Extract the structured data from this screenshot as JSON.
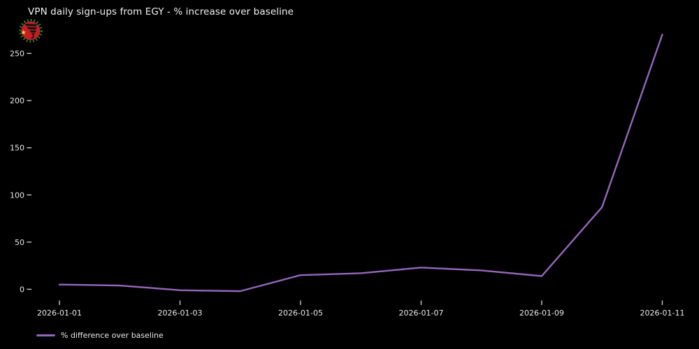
{
  "logo": {
    "ring_color": "#1f8c3a",
    "disc_color": "#c41e25",
    "tornado_color": "#141414",
    "star_color": "#ffcf3f",
    "star_glyph": "★"
  },
  "chart_data": {
    "type": "line",
    "title": "VPN daily sign-ups from EGY - % increase over baseline",
    "xlabel": "",
    "ylabel": "",
    "x": [
      "2026-01-01",
      "2026-01-02",
      "2026-01-03",
      "2026-01-04",
      "2026-01-05",
      "2026-01-06",
      "2026-01-07",
      "2026-01-08",
      "2026-01-09",
      "2026-01-10",
      "2026-01-11"
    ],
    "series": [
      {
        "name": "% difference over baseline",
        "color": "#9467bd",
        "values": [
          5,
          4,
          -1,
          -2,
          15,
          17,
          23,
          20,
          14,
          87,
          270
        ]
      }
    ],
    "x_tick_labels": [
      "2026-01-01",
      "2026-01-03",
      "2026-01-05",
      "2026-01-07",
      "2026-01-09",
      "2026-01-11"
    ],
    "y_ticks": [
      0,
      50,
      100,
      150,
      200,
      250
    ],
    "ylim": [
      -13,
      277
    ],
    "grid": false,
    "legend_position": "bottom-left",
    "background_color": "#000000",
    "text_color": "#eaeaea",
    "tick_color": "#c9c9c9"
  }
}
